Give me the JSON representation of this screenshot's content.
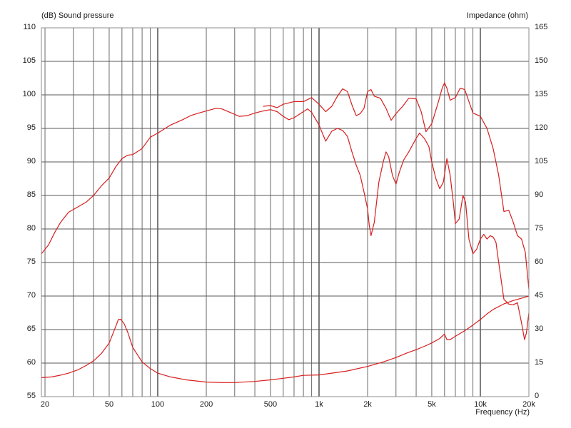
{
  "colors": {
    "curve": "#d81e1e",
    "grid": "#5a5a5a",
    "frame": "#8c8c8c",
    "text": "#1a1a1a"
  },
  "chart_data": {
    "type": "line",
    "title": "",
    "left_axis_label": "(dB)  Sound pressure",
    "right_axis_label": "Impedance  (ohm)",
    "xlabel": "Frequency  (Hz)",
    "x_scale": "log",
    "xlim": [
      19,
      20000
    ],
    "ylim": [
      55,
      110
    ],
    "y2lim": [
      0,
      165
    ],
    "grid": true,
    "x_tick_labels": [
      {
        "value": 20,
        "label": "20"
      },
      {
        "value": 50,
        "label": "50"
      },
      {
        "value": 100,
        "label": "100"
      },
      {
        "value": 200,
        "label": "200"
      },
      {
        "value": 500,
        "label": "500"
      },
      {
        "value": 1000,
        "label": "1k"
      },
      {
        "value": 2000,
        "label": "2k"
      },
      {
        "value": 5000,
        "label": "5k"
      },
      {
        "value": 10000,
        "label": "10k"
      },
      {
        "value": 20000,
        "label": "20k"
      }
    ],
    "y_ticks": [
      110,
      105,
      100,
      95,
      90,
      85,
      80,
      75,
      70,
      65,
      60,
      55
    ],
    "y2_ticks": [
      165,
      150,
      135,
      120,
      105,
      90,
      75,
      60,
      45,
      30,
      15,
      0
    ],
    "series": [
      {
        "axis": "left",
        "points": [
          [
            19,
            76.3
          ],
          [
            21,
            77.6
          ],
          [
            23,
            79.5
          ],
          [
            25,
            81.0
          ],
          [
            28,
            82.5
          ],
          [
            32,
            83.3
          ],
          [
            36,
            84.0
          ],
          [
            40,
            85.0
          ],
          [
            45,
            86.5
          ],
          [
            50,
            87.6
          ],
          [
            55,
            89.3
          ],
          [
            60,
            90.5
          ],
          [
            65,
            91.0
          ],
          [
            70,
            91.1
          ],
          [
            80,
            92.0
          ],
          [
            90,
            93.7
          ],
          [
            100,
            94.3
          ],
          [
            120,
            95.5
          ],
          [
            140,
            96.2
          ],
          [
            160,
            96.9
          ],
          [
            180,
            97.3
          ],
          [
            200,
            97.6
          ],
          [
            230,
            98.0
          ],
          [
            250,
            97.9
          ],
          [
            280,
            97.4
          ],
          [
            320,
            96.8
          ],
          [
            360,
            96.9
          ],
          [
            400,
            97.3
          ],
          [
            450,
            97.6
          ],
          [
            500,
            97.8
          ],
          [
            550,
            97.5
          ],
          [
            600,
            96.8
          ],
          [
            650,
            96.3
          ],
          [
            700,
            96.6
          ],
          [
            800,
            97.5
          ],
          [
            850,
            97.9
          ],
          [
            900,
            97.4
          ],
          [
            1000,
            95.5
          ],
          [
            1100,
            93.1
          ],
          [
            1200,
            94.6
          ],
          [
            1300,
            95.0
          ],
          [
            1400,
            94.7
          ],
          [
            1500,
            93.8
          ],
          [
            1600,
            91.5
          ],
          [
            1700,
            89.5
          ],
          [
            1800,
            88.0
          ],
          [
            1900,
            85.5
          ],
          [
            2000,
            83.0
          ],
          [
            2050,
            80.5
          ],
          [
            2100,
            79.0
          ],
          [
            2200,
            81.0
          ],
          [
            2350,
            87.0
          ],
          [
            2500,
            90.0
          ],
          [
            2600,
            91.5
          ],
          [
            2700,
            90.8
          ],
          [
            2850,
            88.0
          ],
          [
            3000,
            86.7
          ],
          [
            3150,
            88.5
          ],
          [
            3350,
            90.3
          ],
          [
            3600,
            91.5
          ],
          [
            4000,
            93.5
          ],
          [
            4200,
            94.3
          ],
          [
            4500,
            93.5
          ],
          [
            4800,
            92.3
          ],
          [
            5000,
            90.0
          ],
          [
            5300,
            87.5
          ],
          [
            5600,
            86.0
          ],
          [
            5900,
            87.0
          ],
          [
            6200,
            90.5
          ],
          [
            6500,
            88.0
          ],
          [
            6800,
            84.0
          ],
          [
            7000,
            80.8
          ],
          [
            7400,
            81.5
          ],
          [
            7800,
            85.0
          ],
          [
            8100,
            84.0
          ],
          [
            8500,
            78.5
          ],
          [
            9000,
            76.3
          ],
          [
            9500,
            77.0
          ],
          [
            10000,
            78.5
          ],
          [
            10500,
            79.2
          ],
          [
            11000,
            78.5
          ],
          [
            11500,
            79.0
          ],
          [
            12000,
            78.8
          ],
          [
            12500,
            78.0
          ],
          [
            13000,
            75.0
          ],
          [
            14000,
            69.5
          ],
          [
            15000,
            68.8
          ],
          [
            16000,
            68.7
          ],
          [
            17000,
            69.0
          ],
          [
            18000,
            66.0
          ],
          [
            18800,
            63.5
          ],
          [
            19300,
            64.5
          ],
          [
            20000,
            67.5
          ]
        ]
      },
      {
        "axis": "left",
        "points": [
          [
            450,
            98.3
          ],
          [
            500,
            98.4
          ],
          [
            550,
            98.1
          ],
          [
            600,
            98.6
          ],
          [
            700,
            99.0
          ],
          [
            800,
            99.0
          ],
          [
            900,
            99.6
          ],
          [
            1000,
            98.6
          ],
          [
            1100,
            97.5
          ],
          [
            1200,
            98.3
          ],
          [
            1300,
            99.8
          ],
          [
            1400,
            100.9
          ],
          [
            1500,
            100.5
          ],
          [
            1600,
            98.5
          ],
          [
            1700,
            96.9
          ],
          [
            1800,
            97.2
          ],
          [
            1900,
            98.0
          ],
          [
            2000,
            100.5
          ],
          [
            2100,
            100.8
          ],
          [
            2200,
            99.8
          ],
          [
            2400,
            99.5
          ],
          [
            2600,
            98.0
          ],
          [
            2800,
            96.2
          ],
          [
            3000,
            97.2
          ],
          [
            3300,
            98.3
          ],
          [
            3600,
            99.5
          ],
          [
            4000,
            99.4
          ],
          [
            4300,
            97.5
          ],
          [
            4600,
            94.5
          ],
          [
            5000,
            95.7
          ],
          [
            5500,
            99.0
          ],
          [
            5800,
            101.0
          ],
          [
            6000,
            101.8
          ],
          [
            6200,
            101.0
          ],
          [
            6500,
            99.2
          ],
          [
            7000,
            99.6
          ],
          [
            7500,
            101.0
          ],
          [
            8000,
            100.8
          ],
          [
            8500,
            99.0
          ],
          [
            9000,
            97.3
          ],
          [
            10000,
            96.8
          ],
          [
            11000,
            95.0
          ],
          [
            12000,
            92.0
          ],
          [
            13000,
            88.0
          ],
          [
            14000,
            82.6
          ],
          [
            15000,
            82.8
          ],
          [
            16000,
            81.0
          ],
          [
            17000,
            79.0
          ],
          [
            18000,
            78.5
          ],
          [
            19000,
            76.5
          ],
          [
            20000,
            71.0
          ]
        ]
      },
      {
        "axis": "right",
        "points": [
          [
            19,
            8.5
          ],
          [
            22,
            8.8
          ],
          [
            25,
            9.6
          ],
          [
            28,
            10.5
          ],
          [
            32,
            12.0
          ],
          [
            36,
            13.9
          ],
          [
            40,
            16.0
          ],
          [
            45,
            19.5
          ],
          [
            50,
            24.0
          ],
          [
            55,
            31.5
          ],
          [
            57,
            34.5
          ],
          [
            59,
            34.6
          ],
          [
            62,
            32.5
          ],
          [
            65,
            29.0
          ],
          [
            70,
            22.0
          ],
          [
            80,
            15.5
          ],
          [
            90,
            12.5
          ],
          [
            100,
            10.5
          ],
          [
            120,
            8.8
          ],
          [
            150,
            7.5
          ],
          [
            200,
            6.5
          ],
          [
            250,
            6.3
          ],
          [
            300,
            6.3
          ],
          [
            400,
            6.8
          ],
          [
            500,
            7.5
          ],
          [
            600,
            8.2
          ],
          [
            700,
            8.8
          ],
          [
            800,
            9.5
          ],
          [
            1000,
            9.7
          ],
          [
            1200,
            10.5
          ],
          [
            1500,
            11.5
          ],
          [
            2000,
            13.5
          ],
          [
            2500,
            15.5
          ],
          [
            3000,
            17.5
          ],
          [
            3500,
            19.5
          ],
          [
            4000,
            21.0
          ],
          [
            4500,
            22.5
          ],
          [
            5000,
            24.0
          ],
          [
            5600,
            26.0
          ],
          [
            6000,
            28.0
          ],
          [
            6200,
            25.5
          ],
          [
            6500,
            25.5
          ],
          [
            7000,
            27.0
          ],
          [
            8000,
            29.5
          ],
          [
            9000,
            32.0
          ],
          [
            10000,
            34.5
          ],
          [
            11000,
            37.0
          ],
          [
            12000,
            39.0
          ],
          [
            14000,
            41.5
          ],
          [
            16000,
            43.0
          ],
          [
            18000,
            44.0
          ],
          [
            20000,
            45.0
          ]
        ]
      }
    ]
  }
}
